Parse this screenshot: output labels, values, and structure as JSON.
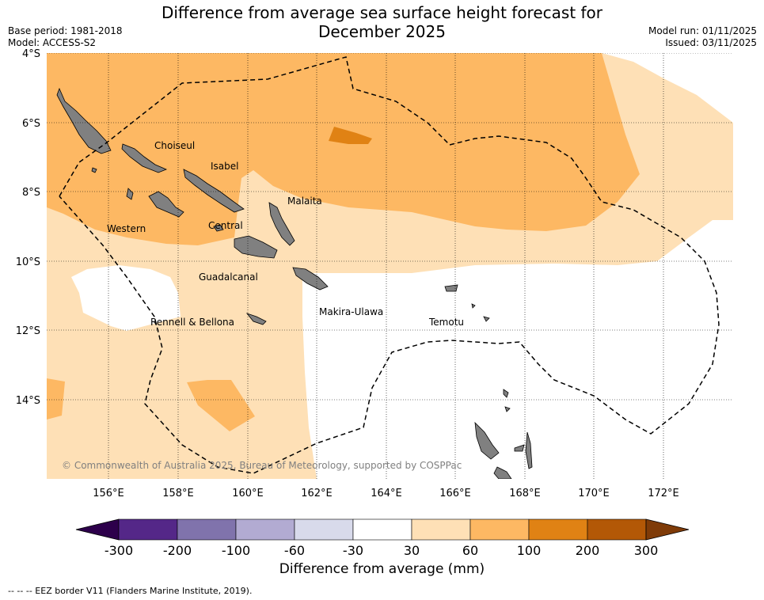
{
  "title_line1": "Difference from average sea surface height forecast for",
  "title_line2": "December 2025",
  "meta": {
    "base_period": "Base period: 1981-2018",
    "model": "Model: ACCESS-S2",
    "model_run": "Model run: 01/11/2025",
    "issued": "Issued: 03/11/2025"
  },
  "axes": {
    "lat_labels": [
      "4°S",
      "6°S",
      "8°S",
      "10°S",
      "12°S",
      "14°S"
    ],
    "lon_labels": [
      "156°E",
      "158°E",
      "160°E",
      "162°E",
      "164°E",
      "166°E",
      "168°E",
      "170°E",
      "172°E"
    ]
  },
  "places": {
    "choiseul": "Choiseul",
    "isabel": "Isabel",
    "malaita": "Malaita",
    "western": "Western",
    "central": "Central",
    "guadalcanal": "Guadalcanal",
    "makira": "Makira-Ulawa",
    "rennell": "Rennell & Bellona",
    "temotu": "Temotu"
  },
  "copyright": "© Commonwealth of Australia 2025, Bureau of Meteorology, supported by COSPPac",
  "colorbar": {
    "title": "Difference from average (mm)",
    "ticks": [
      "-300",
      "-200",
      "-100",
      "-60",
      "-30",
      "30",
      "60",
      "100",
      "200",
      "300"
    ],
    "colors": {
      "under": "#2d004b",
      "c1": "#542788",
      "c2": "#8073ac",
      "c3": "#b2abd2",
      "c4": "#d8daeb",
      "c5": "#ffffff",
      "c6": "#fee0b6",
      "c7": "#fdb863",
      "c8": "#e08214",
      "c9": "#b35806",
      "over": "#7f3b08"
    }
  },
  "eez_note": "--  --  -- EEZ border V11 (Flanders Marine Institute, 2019)."
}
